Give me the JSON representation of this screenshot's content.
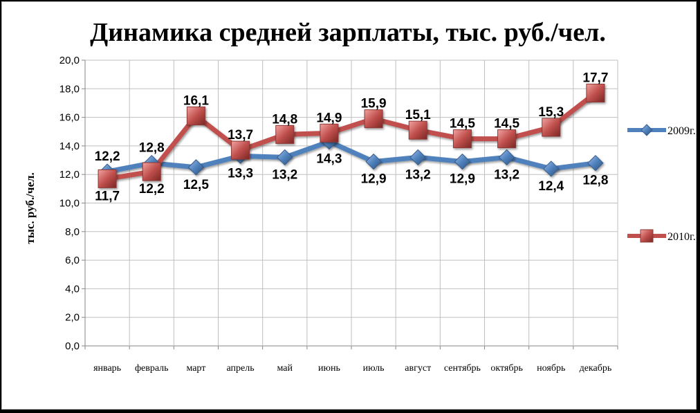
{
  "chart_data": {
    "type": "line",
    "title": "Динамика средней зарплаты, тыс. руб./чел.",
    "xlabel": "",
    "ylabel": "тыс. руб./чел.",
    "ylim": [
      0,
      20
    ],
    "ytick_labels": [
      "0,0",
      "2,0",
      "4,0",
      "6,0",
      "8,0",
      "10,0",
      "12,0",
      "14,0",
      "16,0",
      "18,0",
      "20,0"
    ],
    "grid": true,
    "legend_position": "right",
    "categories": [
      "январь",
      "февраль",
      "март",
      "апрель",
      "май",
      "июнь",
      "июль",
      "август",
      "сентябрь",
      "октябрь",
      "ноябрь",
      "декабрь"
    ],
    "series": [
      {
        "name": "2009г.",
        "color": "#4f81bd",
        "marker": "diamond",
        "values": [
          12.2,
          12.8,
          12.5,
          13.3,
          13.2,
          14.3,
          12.9,
          13.2,
          12.9,
          13.2,
          12.4,
          12.8
        ],
        "labels": [
          "12,2",
          "12,8",
          "12,5",
          "13,3",
          "13,2",
          "14,3",
          "12,9",
          "13,2",
          "12,9",
          "13,2",
          "12,4",
          "12,8"
        ]
      },
      {
        "name": "2010г.",
        "color": "#c0504d",
        "marker": "square",
        "values": [
          11.7,
          12.2,
          16.1,
          13.7,
          14.8,
          14.9,
          15.9,
          15.1,
          14.5,
          14.5,
          15.3,
          17.7
        ],
        "labels": [
          "11,7",
          "12,2",
          "16,1",
          "13,7",
          "14,8",
          "14,9",
          "15,9",
          "15,1",
          "14,5",
          "14,5",
          "15,3",
          "17,7"
        ]
      }
    ]
  }
}
